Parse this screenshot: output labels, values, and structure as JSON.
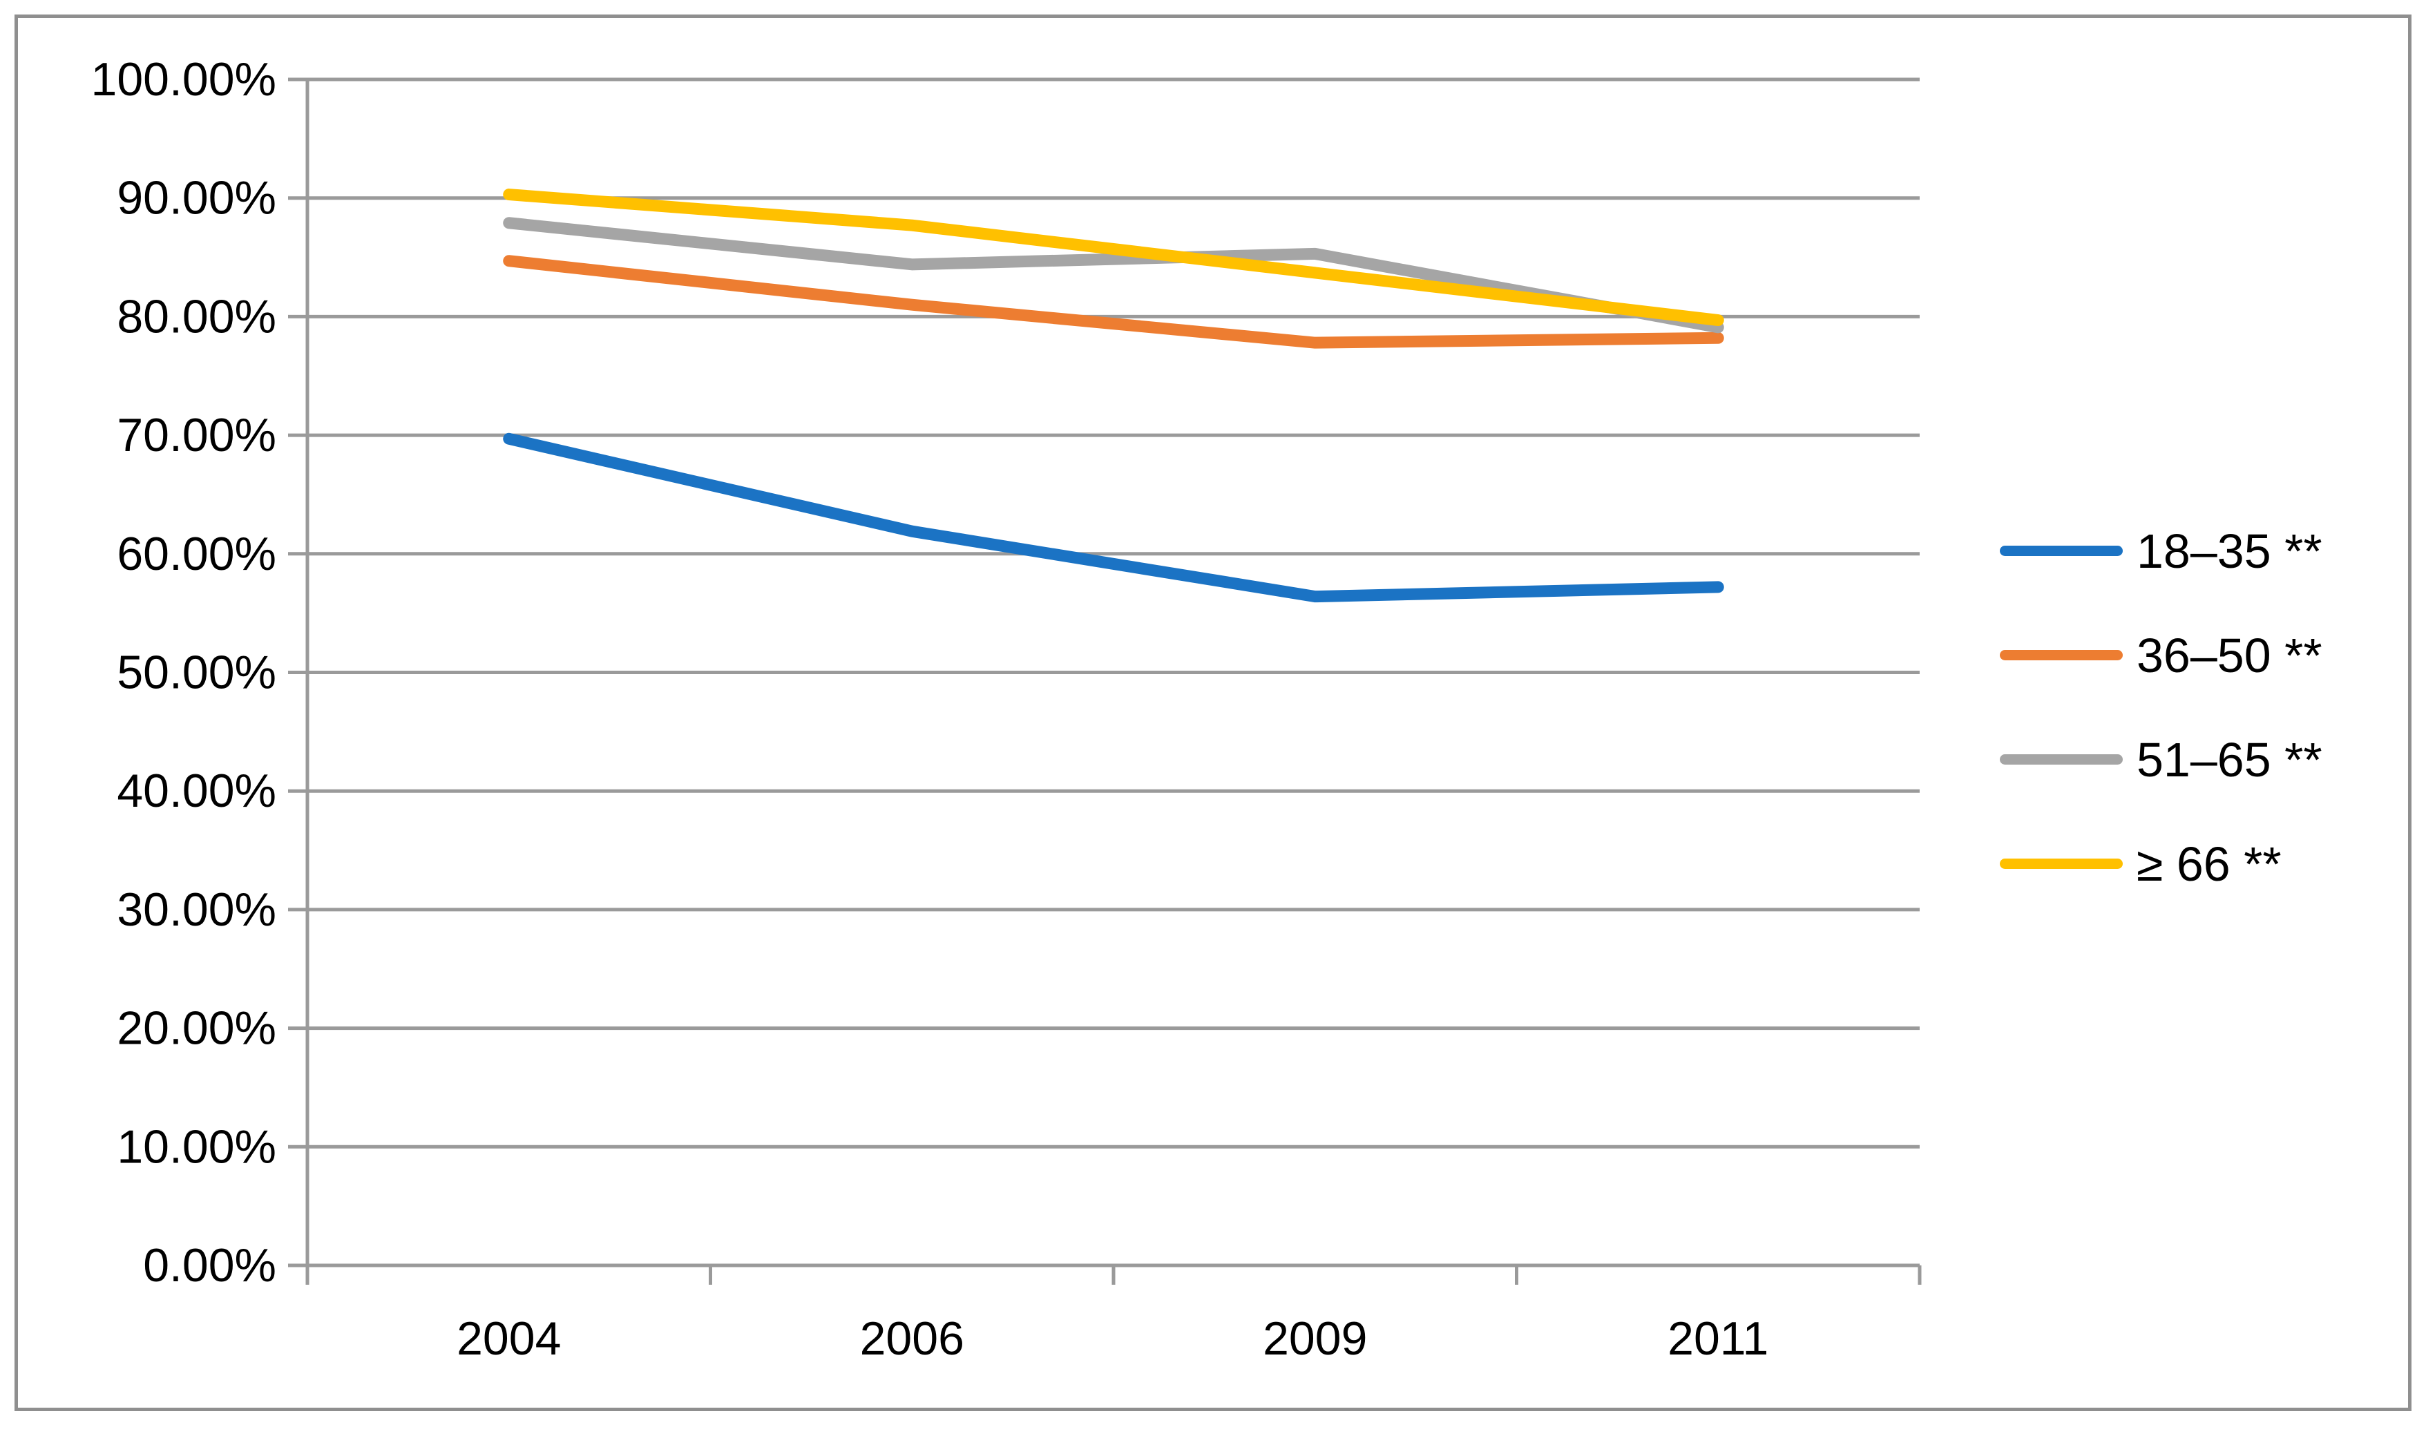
{
  "figure": {
    "background": "#ffffff",
    "border_color": "#8f8f8f"
  },
  "chart_data": {
    "type": "line",
    "title": "",
    "xlabel": "",
    "ylabel": "",
    "categories": [
      "2004",
      "2006",
      "2009",
      "2011"
    ],
    "series": [
      {
        "name": "18–35 **",
        "color": "#1b73c4",
        "values": [
          69.7,
          61.9,
          56.4,
          57.2
        ]
      },
      {
        "name": "36–50 **",
        "color": "#ed7d31",
        "values": [
          84.7,
          81.0,
          77.8,
          78.2
        ]
      },
      {
        "name": "51–65 **",
        "color": "#a5a5a5",
        "values": [
          87.9,
          84.4,
          85.3,
          79.1
        ]
      },
      {
        "name": "≥ 66 **",
        "color": "#ffc000",
        "values": [
          90.3,
          87.7,
          83.7,
          79.7
        ]
      }
    ],
    "ylim": [
      0,
      100
    ],
    "y_tick_step": 10,
    "y_tick_labels": [
      "0.00%",
      "10.00%",
      "20.00%",
      "30.00%",
      "40.00%",
      "50.00%",
      "60.00%",
      "70.00%",
      "80.00%",
      "90.00%",
      "100.00%"
    ],
    "grid": "horizontal",
    "legend_position": "right",
    "gridline_color": "#9a9a9a",
    "axis_color": "#9a9a9a",
    "text_color": "#000000"
  }
}
